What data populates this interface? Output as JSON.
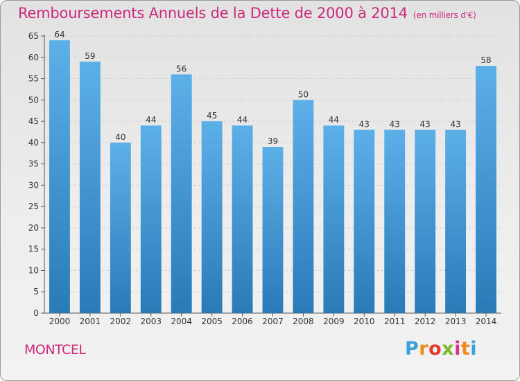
{
  "title": "Remboursements Annuels de la Dette de 2000 à 2014",
  "unit_note": "(en milliers d'€)",
  "location_label": "MONTCEL",
  "logo": {
    "letters": [
      "P",
      "r",
      "o",
      "x",
      "i",
      "t",
      "i"
    ],
    "colors": [
      "#3ea0d8",
      "#f08a1c",
      "#e63a2c",
      "#79b92b",
      "#d6338a",
      "#f08a1c",
      "#3ea0d8"
    ]
  },
  "colors": {
    "bar_light": "#5cb0e8",
    "bar_dark": "#2a7ab8",
    "title": "#cc2a7a"
  },
  "chart_data": {
    "type": "bar",
    "title": "Remboursements Annuels de la Dette de 2000 à 2014",
    "xlabel": "",
    "ylabel": "",
    "categories": [
      "2000",
      "2001",
      "2002",
      "2003",
      "2004",
      "2005",
      "2006",
      "2007",
      "2008",
      "2009",
      "2010",
      "2011",
      "2012",
      "2013",
      "2014"
    ],
    "values": [
      64,
      59,
      40,
      44,
      56,
      45,
      44,
      39,
      50,
      44,
      43,
      43,
      43,
      43,
      58
    ],
    "ylim": [
      0,
      65
    ],
    "yticks": [
      0,
      5,
      10,
      15,
      20,
      25,
      30,
      35,
      40,
      45,
      50,
      55,
      60,
      65
    ],
    "grid": true,
    "data_labels": true
  }
}
